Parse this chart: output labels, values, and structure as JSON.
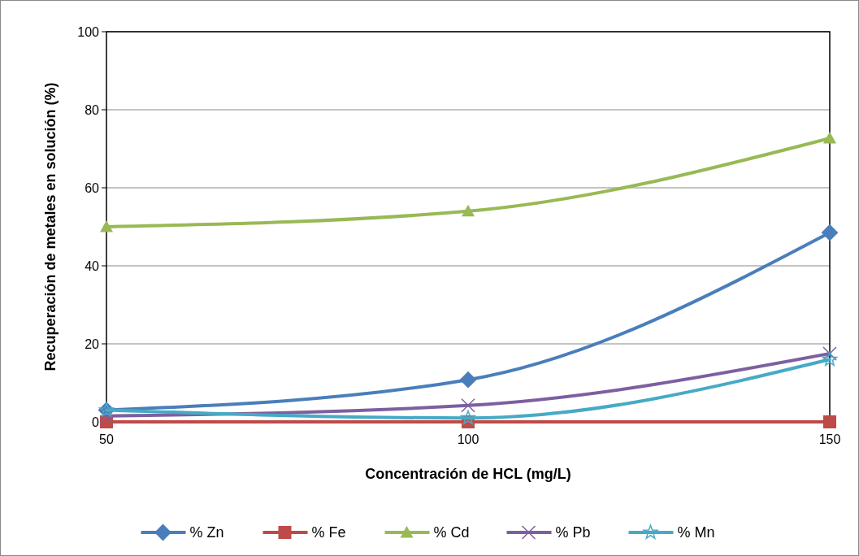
{
  "chart_data": {
    "type": "line",
    "xlabel": "Concentración de HCL (mg/L)",
    "ylabel": "Recuperación de metales en solución (%)",
    "x": [
      50,
      100,
      150
    ],
    "xlim": [
      50,
      150
    ],
    "xticks": [
      50,
      100,
      150
    ],
    "ylim": [
      0,
      100
    ],
    "yticks": [
      0,
      20,
      40,
      60,
      80,
      100
    ],
    "grid": "y",
    "legend": "bottom",
    "series": [
      {
        "name": "% Zn",
        "color": "#4a7ebb",
        "marker": "diamond",
        "values": [
          3,
          10.8,
          48.5
        ]
      },
      {
        "name": "% Fe",
        "color": "#be4b48",
        "marker": "square",
        "values": [
          0,
          0,
          0
        ]
      },
      {
        "name": "% Cd",
        "color": "#98b954",
        "marker": "triangle",
        "values": [
          50,
          54,
          72.7
        ]
      },
      {
        "name": "% Pb",
        "color": "#7d5fa0",
        "marker": "cross",
        "values": [
          1.5,
          4.2,
          17.5
        ]
      },
      {
        "name": "% Mn",
        "color": "#46aac5",
        "marker": "star",
        "values": [
          3,
          1,
          16
        ]
      }
    ]
  }
}
